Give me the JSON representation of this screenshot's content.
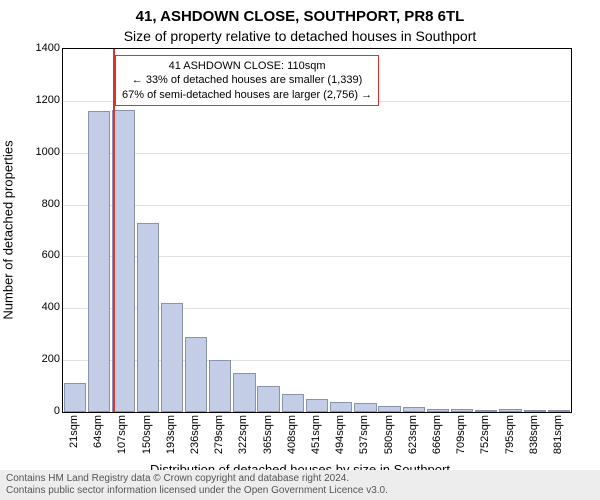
{
  "title1": "41, ASHDOWN CLOSE, SOUTHPORT, PR8 6TL",
  "title2": "Size of property relative to detached houses in Southport",
  "ylabel": "Number of detached properties",
  "xlabel": "Distribution of detached houses by size in Southport",
  "footer1": "Contains HM Land Registry data © Crown copyright and database right 2024.",
  "footer2": "Contains public sector information licensed under the Open Government Licence v3.0.",
  "chart": {
    "ylim_max": 1400,
    "ytick_step": 200,
    "bar_fill": "#c3cde5",
    "bar_stroke": "#8a93ae",
    "grid_color": "#e0e0e0",
    "marker_color": "#e03131",
    "background": "#ffffff",
    "categories": [
      "21sqm",
      "64sqm",
      "107sqm",
      "150sqm",
      "193sqm",
      "236sqm",
      "279sqm",
      "322sqm",
      "365sqm",
      "408sqm",
      "451sqm",
      "494sqm",
      "537sqm",
      "580sqm",
      "623sqm",
      "666sqm",
      "709sqm",
      "752sqm",
      "795sqm",
      "838sqm",
      "881sqm"
    ],
    "values": [
      110,
      1160,
      1165,
      730,
      420,
      290,
      200,
      150,
      100,
      70,
      50,
      40,
      35,
      25,
      20,
      10,
      10,
      5,
      10,
      5,
      5
    ],
    "marker_index": 2
  },
  "annotation": {
    "line1": "41 ASHDOWN CLOSE: 110sqm",
    "line2": "← 33% of detached houses are smaller (1,339)",
    "line3": "67% of semi-detached houses are larger (2,756) →"
  }
}
